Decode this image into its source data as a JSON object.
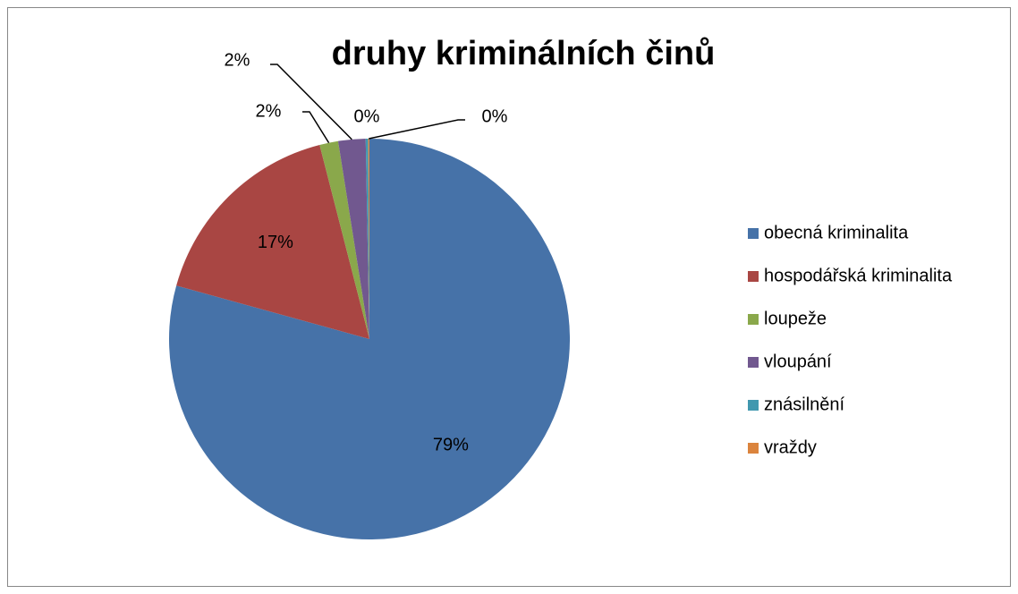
{
  "chart_data": {
    "type": "pie",
    "title": "druhy kriminálních činů",
    "categories": [
      "obecná kriminalita",
      "hospodářská kriminalita",
      "loupeže",
      "vloupání",
      "znásilnění",
      "vraždy"
    ],
    "values": [
      79.3,
      16.7,
      1.5,
      2.2,
      0.2,
      0.1
    ],
    "value_labels": [
      "79%",
      "17%",
      "2%",
      "2%",
      "0%",
      "0%"
    ],
    "colors": [
      "#4672a8",
      "#a94643",
      "#8aa84b",
      "#71588f",
      "#4198af",
      "#db843d"
    ],
    "legend": "right"
  }
}
